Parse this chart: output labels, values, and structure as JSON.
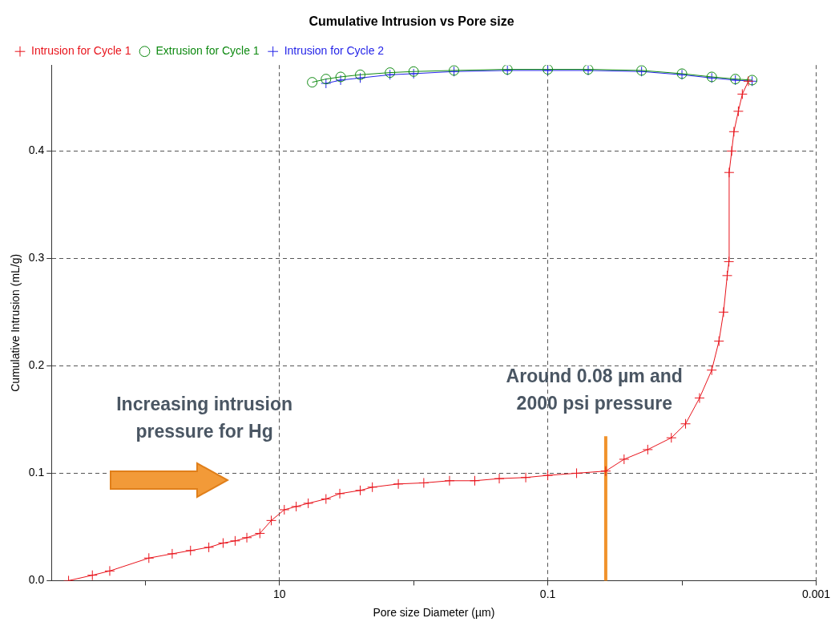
{
  "chart_data": {
    "type": "line",
    "title": "Cumulative Intrusion vs Pore size",
    "xlabel": "Pore size Diameter (µm)",
    "ylabel": "Cumulative Intrusion (mL/g)",
    "log": "x",
    "xlim": [
      500,
      0.001
    ],
    "xticks": [
      {
        "value": 100,
        "label": null
      },
      10,
      {
        "value": 1,
        "label": null
      },
      0.1,
      {
        "value": 0.01,
        "label": null
      },
      0.001
    ],
    "ylim": [
      0,
      0.48
    ],
    "yticks": [
      {
        "value": 0,
        "label": "0.0"
      },
      0.1,
      0.2,
      0.3,
      0.4
    ],
    "grid": true,
    "legend": "top",
    "series": [
      {
        "name": "Intrusion for Cycle 1",
        "color": "#e8131b",
        "marker": "cross",
        "x": [
          373,
          248,
          184,
          94,
          63,
          46,
          33.6,
          26.3,
          21.4,
          17.5,
          14,
          11.5,
          9.2,
          7.5,
          6.1,
          4.5,
          3.55,
          2.5,
          2.03,
          1.3,
          0.84,
          0.54,
          0.35,
          0.23,
          0.146,
          0.1,
          0.061,
          0.037,
          0.027,
          0.018,
          0.012,
          0.0094,
          0.0074,
          0.006,
          0.0053,
          0.0049,
          0.0046,
          0.00447,
          0.00445,
          0.00426,
          0.0041,
          0.0038,
          0.00355,
          0.0032
        ],
        "values": [
          0,
          0.005,
          0.009,
          0.021,
          0.025,
          0.028,
          0.031,
          0.035,
          0.037,
          0.04,
          0.044,
          0.056,
          0.066,
          0.069,
          0.072,
          0.076,
          0.081,
          0.084,
          0.087,
          0.09,
          0.091,
          0.093,
          0.093,
          0.095,
          0.096,
          0.098,
          0.1,
          0.102,
          0.113,
          0.122,
          0.133,
          0.146,
          0.17,
          0.196,
          0.223,
          0.25,
          0.284,
          0.297,
          0.38,
          0.4,
          0.418,
          0.437,
          0.453,
          0.465
        ]
      },
      {
        "name": "Extrusion for Cycle 1",
        "color": "#0f8a12",
        "marker": "circle",
        "x": [
          5.7,
          4.5,
          3.5,
          2.5,
          1.5,
          1,
          0.5,
          0.2,
          0.1,
          0.05,
          0.02,
          0.01,
          0.006,
          0.004,
          0.003
        ],
        "values": [
          0.464,
          0.467,
          0.469,
          0.471,
          0.473,
          0.474,
          0.475,
          0.476,
          0.476,
          0.476,
          0.475,
          0.472,
          0.469,
          0.467,
          0.466
        ]
      },
      {
        "name": "Intrusion for Cycle 2",
        "color": "#2424e8",
        "marker": "cross",
        "x": [
          4.5,
          3.5,
          2.5,
          1.5,
          1,
          0.5,
          0.2,
          0.1,
          0.05,
          0.02,
          0.01,
          0.006,
          0.004,
          0.003
        ],
        "values": [
          0.463,
          0.466,
          0.468,
          0.471,
          0.472,
          0.474,
          0.475,
          0.475,
          0.475,
          0.474,
          0.471,
          0.468,
          0.466,
          0.465
        ]
      }
    ],
    "ref_lines": [
      {
        "axis": "x",
        "value": 0.037,
        "color": "#f0922b"
      }
    ],
    "annotations": [
      "Increasing intrusion pressure for Hg",
      "Around 0.08 µm and 2000 psi pressure"
    ]
  }
}
